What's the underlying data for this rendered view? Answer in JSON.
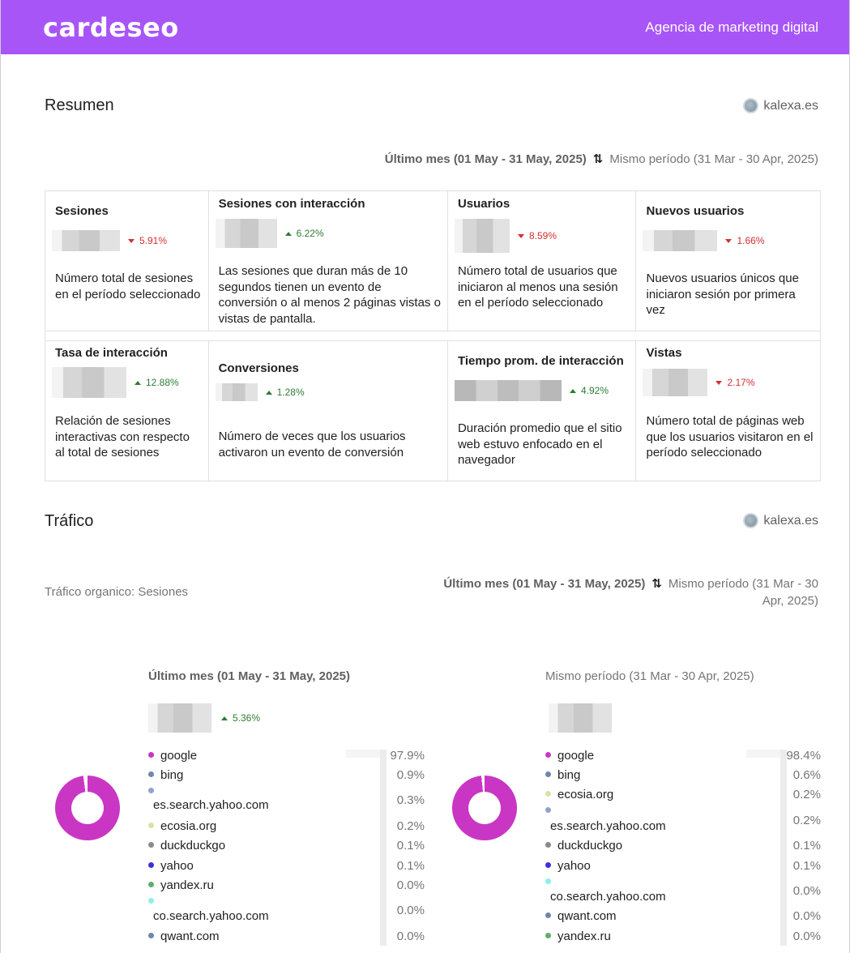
{
  "header": {
    "logo": "cardeseo",
    "tagline": "Agencia de marketing digital"
  },
  "resumen": {
    "title": "Resumen",
    "site": "kalexa.es",
    "period_current": "Último mes (01 May - 31 May, 2025)",
    "period_compare": "Mismo período (31 Mar - 30 Apr, 2025)",
    "metrics": [
      {
        "label": "Sesiones",
        "change": "5.91%",
        "direction": "down",
        "desc": "Número total de sesiones en el período seleccionado"
      },
      {
        "label": "Sesiones con interacción",
        "change": "6.22%",
        "direction": "up",
        "desc": "Las sesiones que duran más de 10 segundos tienen un evento de conversión o al menos 2 páginas vistas o vistas de pantalla."
      },
      {
        "label": "Usuarios",
        "change": "8.59%",
        "direction": "down",
        "desc": "Número total de usuarios que iniciaron al menos una sesión en el período seleccionado"
      },
      {
        "label": "Nuevos usuarios",
        "change": "1.66%",
        "direction": "down",
        "desc": "Nuevos usuarios únicos que iniciaron sesión por primera vez"
      },
      {
        "label": "Tasa de interacción",
        "change": "12.88%",
        "direction": "up",
        "desc": "Relación de sesiones interactivas con respecto al total de sesiones"
      },
      {
        "label": "Conversiones",
        "change": "1.28%",
        "direction": "up",
        "desc": "Número de veces que los usuarios activaron un evento de conversión"
      },
      {
        "label": "Tiempo prom. de interacción",
        "change": "4.92%",
        "direction": "up",
        "desc": "Duración promedio que el sitio web estuvo enfocado en el navegador"
      },
      {
        "label": "Vistas",
        "change": "2.17%",
        "direction": "down",
        "desc": "Número total de páginas web que los usuarios visitaron en el período seleccionado"
      }
    ]
  },
  "trafico": {
    "title": "Tráfico",
    "site": "kalexa.es",
    "subtitle": "Tráfico organico: Sesiones",
    "period_current": "Último mes (01 May - 31 May, 2025)",
    "period_compare": "Mismo período (31 Mar - 30 Apr, 2025)",
    "current": {
      "title": "Último mes (01 May - 31 May, 2025)",
      "change": "5.36%",
      "direction": "up",
      "sources": [
        {
          "name": "google",
          "pct": "97.9%",
          "color": "#c936c4"
        },
        {
          "name": "bing",
          "pct": "0.9%",
          "color": "#6f87a8"
        },
        {
          "name": "es.search.yahoo.com",
          "pct": "0.3%",
          "color": "#8ea5c9"
        },
        {
          "name": "ecosia.org",
          "pct": "0.2%",
          "color": "#d4e6a5"
        },
        {
          "name": "duckduckgo",
          "pct": "0.1%",
          "color": "#8a8a8a"
        },
        {
          "name": "yahoo",
          "pct": "0.1%",
          "color": "#3b2fe0"
        },
        {
          "name": "yandex.ru",
          "pct": "0.0%",
          "color": "#5fae6f"
        },
        {
          "name": "co.search.yahoo.com",
          "pct": "0.0%",
          "color": "#8ef0e6"
        },
        {
          "name": "qwant.com",
          "pct": "0.0%",
          "color": "#6f87a8"
        }
      ]
    },
    "previous": {
      "title": "Mismo período (31 Mar - 30 Apr, 2025)",
      "sources": [
        {
          "name": "google",
          "pct": "98.4%",
          "color": "#c936c4"
        },
        {
          "name": "bing",
          "pct": "0.6%",
          "color": "#6f87a8"
        },
        {
          "name": "ecosia.org",
          "pct": "0.2%",
          "color": "#d4e6a5"
        },
        {
          "name": "es.search.yahoo.com",
          "pct": "0.2%",
          "color": "#8ea5c9"
        },
        {
          "name": "duckduckgo",
          "pct": "0.1%",
          "color": "#8a8a8a"
        },
        {
          "name": "yahoo",
          "pct": "0.1%",
          "color": "#3b2fe0"
        },
        {
          "name": "co.search.yahoo.com",
          "pct": "0.0%",
          "color": "#8ef0e6"
        },
        {
          "name": "qwant.com",
          "pct": "0.0%",
          "color": "#6f87a8"
        },
        {
          "name": "yandex.ru",
          "pct": "0.0%",
          "color": "#5fae6f"
        }
      ]
    }
  }
}
